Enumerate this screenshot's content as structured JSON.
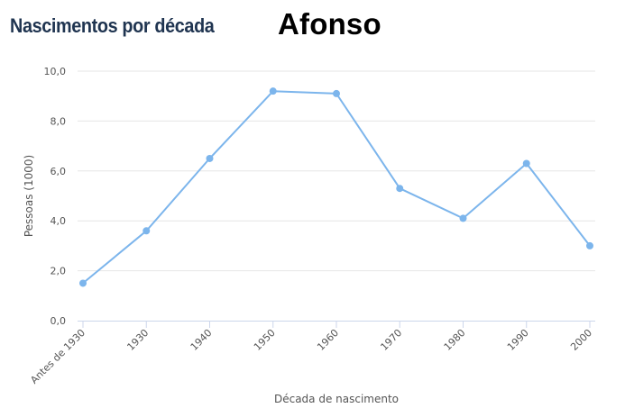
{
  "header": {
    "title": "Nascimentos por década",
    "name": "Afonso"
  },
  "chart_data": {
    "type": "line",
    "categories": [
      "Antes de 1930",
      "1930",
      "1940",
      "1950",
      "1960",
      "1970",
      "1980",
      "1990",
      "2000"
    ],
    "series": [
      {
        "values": [
          1.5,
          3.6,
          6.5,
          9.2,
          9.1,
          5.3,
          4.1,
          6.3,
          3.0
        ],
        "color": "#7cb5ec"
      }
    ],
    "xlabel": "Década de nascimento",
    "ylabel": "Pessoas (1000)",
    "ylim": [
      0,
      10
    ],
    "yticks": [
      "0,0",
      "2,0",
      "4,0",
      "6,0",
      "8,0",
      "10,0"
    ],
    "grid": true,
    "legend": "none"
  },
  "colors": {
    "series": "#7cb5ec",
    "grid": "#e6e6e6",
    "axis": "#ccd6eb",
    "title": "#1f3450"
  }
}
